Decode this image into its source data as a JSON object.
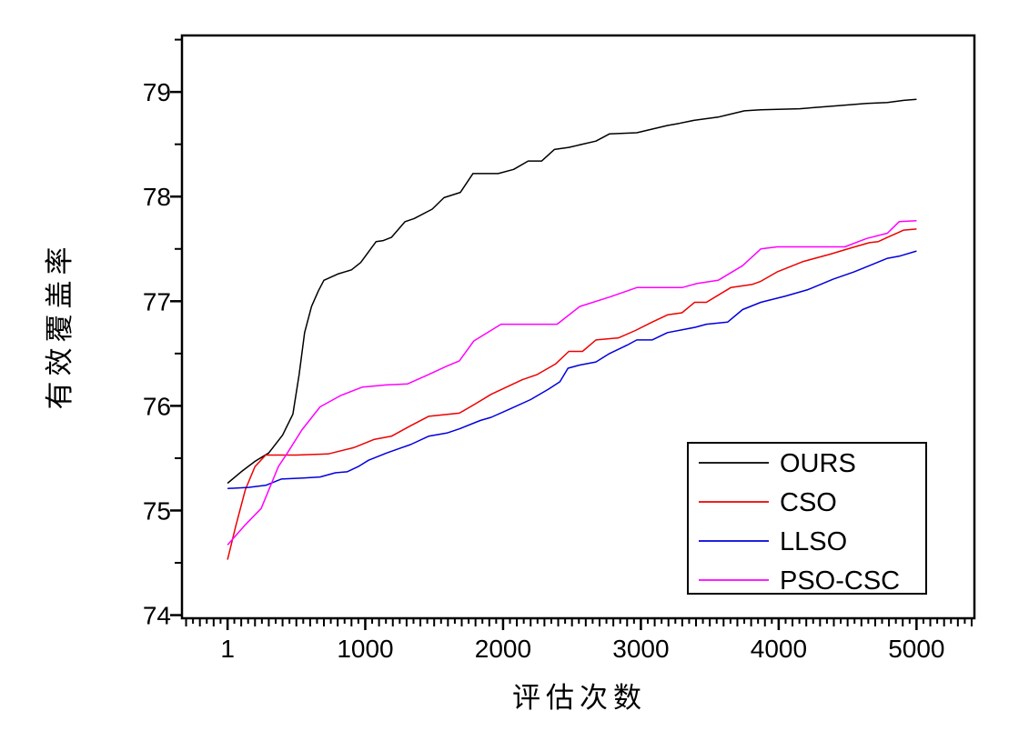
{
  "figure": {
    "background": "#ffffff",
    "frame_color": "#000000"
  },
  "chart_data": {
    "type": "line",
    "title": "",
    "xlabel": "评估次数",
    "ylabel": "有效覆盖率",
    "xlim": [
      -330,
      5420
    ],
    "ylim": [
      73.97,
      79.54
    ],
    "grid": false,
    "x_major_ticks": [
      1,
      1000,
      2000,
      3000,
      4000,
      5000
    ],
    "x_tick_labels": [
      "1",
      "1000",
      "2000",
      "3000",
      "4000",
      "5000"
    ],
    "x_minor_step": 100,
    "x_subminor_step": 50,
    "y_major_ticks": [
      74,
      75,
      76,
      77,
      78,
      79
    ],
    "y_tick_labels": [
      "74",
      "75",
      "76",
      "77",
      "78",
      "79"
    ],
    "y_minor_step": 0.5,
    "legend": {
      "position": "bottom-right",
      "entries": [
        "OURS",
        "CSO",
        "LLSO",
        "PSO-CSC"
      ]
    },
    "series": [
      {
        "name": "OURS",
        "color": "#000000",
        "points": [
          [
            1,
            75.26
          ],
          [
            100,
            75.37
          ],
          [
            200,
            75.47
          ],
          [
            300,
            75.55
          ],
          [
            400,
            75.72
          ],
          [
            475,
            75.92
          ],
          [
            520,
            76.3
          ],
          [
            560,
            76.7
          ],
          [
            610,
            76.95
          ],
          [
            660,
            77.1
          ],
          [
            700,
            77.2
          ],
          [
            800,
            77.26
          ],
          [
            900,
            77.3
          ],
          [
            967,
            77.37
          ],
          [
            1079,
            77.57
          ],
          [
            1131,
            77.58
          ],
          [
            1190,
            77.61
          ],
          [
            1289,
            77.76
          ],
          [
            1354,
            77.79
          ],
          [
            1486,
            77.88
          ],
          [
            1571,
            77.99
          ],
          [
            1690,
            78.04
          ],
          [
            1781,
            78.22
          ],
          [
            1965,
            78.22
          ],
          [
            2077,
            78.26
          ],
          [
            2182,
            78.34
          ],
          [
            2280,
            78.34
          ],
          [
            2372,
            78.45
          ],
          [
            2477,
            78.47
          ],
          [
            2674,
            78.53
          ],
          [
            2773,
            78.6
          ],
          [
            2970,
            78.61
          ],
          [
            3193,
            78.68
          ],
          [
            3278,
            78.7
          ],
          [
            3390,
            78.73
          ],
          [
            3561,
            78.76
          ],
          [
            3751,
            78.82
          ],
          [
            3870,
            78.83
          ],
          [
            4152,
            78.84
          ],
          [
            4441,
            78.87
          ],
          [
            4638,
            78.89
          ],
          [
            4789,
            78.9
          ],
          [
            4907,
            78.92
          ],
          [
            5000,
            78.93
          ]
        ]
      },
      {
        "name": "CSO",
        "color": "#ee0000",
        "points": [
          [
            1,
            74.53
          ],
          [
            60,
            74.85
          ],
          [
            130,
            75.2
          ],
          [
            200,
            75.42
          ],
          [
            278,
            75.53
          ],
          [
            500,
            75.53
          ],
          [
            730,
            75.54
          ],
          [
            915,
            75.6
          ],
          [
            1066,
            75.68
          ],
          [
            1190,
            75.71
          ],
          [
            1328,
            75.81
          ],
          [
            1460,
            75.9
          ],
          [
            1683,
            75.93
          ],
          [
            1800,
            76.02
          ],
          [
            1913,
            76.11
          ],
          [
            2140,
            76.25
          ],
          [
            2248,
            76.3
          ],
          [
            2380,
            76.4
          ],
          [
            2477,
            76.52
          ],
          [
            2576,
            76.52
          ],
          [
            2674,
            76.63
          ],
          [
            2838,
            76.65
          ],
          [
            2960,
            76.72
          ],
          [
            3081,
            76.8
          ],
          [
            3193,
            76.87
          ],
          [
            3298,
            76.89
          ],
          [
            3390,
            76.99
          ],
          [
            3475,
            76.99
          ],
          [
            3652,
            77.13
          ],
          [
            3805,
            77.16
          ],
          [
            3870,
            77.19
          ],
          [
            3988,
            77.28
          ],
          [
            4178,
            77.38
          ],
          [
            4375,
            77.45
          ],
          [
            4526,
            77.51
          ],
          [
            4658,
            77.56
          ],
          [
            4723,
            77.57
          ],
          [
            4789,
            77.61
          ],
          [
            4907,
            77.68
          ],
          [
            5000,
            77.69
          ]
        ]
      },
      {
        "name": "LLSO",
        "color": "#0000dd",
        "points": [
          [
            1,
            75.21
          ],
          [
            150,
            75.22
          ],
          [
            278,
            75.24
          ],
          [
            390,
            75.3
          ],
          [
            550,
            75.31
          ],
          [
            672,
            75.32
          ],
          [
            783,
            75.36
          ],
          [
            868,
            75.37
          ],
          [
            950,
            75.42
          ],
          [
            1024,
            75.48
          ],
          [
            1156,
            75.55
          ],
          [
            1263,
            75.6
          ],
          [
            1328,
            75.63
          ],
          [
            1460,
            75.71
          ],
          [
            1592,
            75.74
          ],
          [
            1683,
            75.78
          ],
          [
            1834,
            75.86
          ],
          [
            1913,
            75.89
          ],
          [
            2050,
            75.97
          ],
          [
            2200,
            76.06
          ],
          [
            2330,
            76.16
          ],
          [
            2412,
            76.23
          ],
          [
            2471,
            76.36
          ],
          [
            2556,
            76.39
          ],
          [
            2674,
            76.42
          ],
          [
            2773,
            76.5
          ],
          [
            2900,
            76.58
          ],
          [
            2970,
            76.63
          ],
          [
            3081,
            76.63
          ],
          [
            3193,
            76.7
          ],
          [
            3390,
            76.75
          ],
          [
            3475,
            76.78
          ],
          [
            3629,
            76.8
          ],
          [
            3738,
            76.92
          ],
          [
            3870,
            76.99
          ],
          [
            4050,
            77.05
          ],
          [
            4211,
            77.11
          ],
          [
            4395,
            77.21
          ],
          [
            4546,
            77.28
          ],
          [
            4658,
            77.34
          ],
          [
            4789,
            77.41
          ],
          [
            4874,
            77.43
          ],
          [
            5000,
            77.48
          ]
        ]
      },
      {
        "name": "PSO-CSC",
        "color": "#ff00ff",
        "points": [
          [
            1,
            74.67
          ],
          [
            120,
            74.85
          ],
          [
            245,
            75.02
          ],
          [
            370,
            75.42
          ],
          [
            435,
            75.55
          ],
          [
            540,
            75.77
          ],
          [
            672,
            75.99
          ],
          [
            823,
            76.1
          ],
          [
            980,
            76.18
          ],
          [
            1150,
            76.2
          ],
          [
            1308,
            76.21
          ],
          [
            1460,
            76.3
          ],
          [
            1592,
            76.38
          ],
          [
            1683,
            76.43
          ],
          [
            1788,
            76.62
          ],
          [
            1985,
            76.78
          ],
          [
            2392,
            76.78
          ],
          [
            2556,
            76.95
          ],
          [
            2773,
            77.04
          ],
          [
            2970,
            77.13
          ],
          [
            3298,
            77.13
          ],
          [
            3410,
            77.17
          ],
          [
            3560,
            77.2
          ],
          [
            3650,
            77.27
          ],
          [
            3738,
            77.34
          ],
          [
            3870,
            77.5
          ],
          [
            3988,
            77.52
          ],
          [
            4480,
            77.52
          ],
          [
            4638,
            77.6
          ],
          [
            4789,
            77.65
          ],
          [
            4874,
            77.76
          ],
          [
            5000,
            77.77
          ]
        ]
      }
    ]
  }
}
